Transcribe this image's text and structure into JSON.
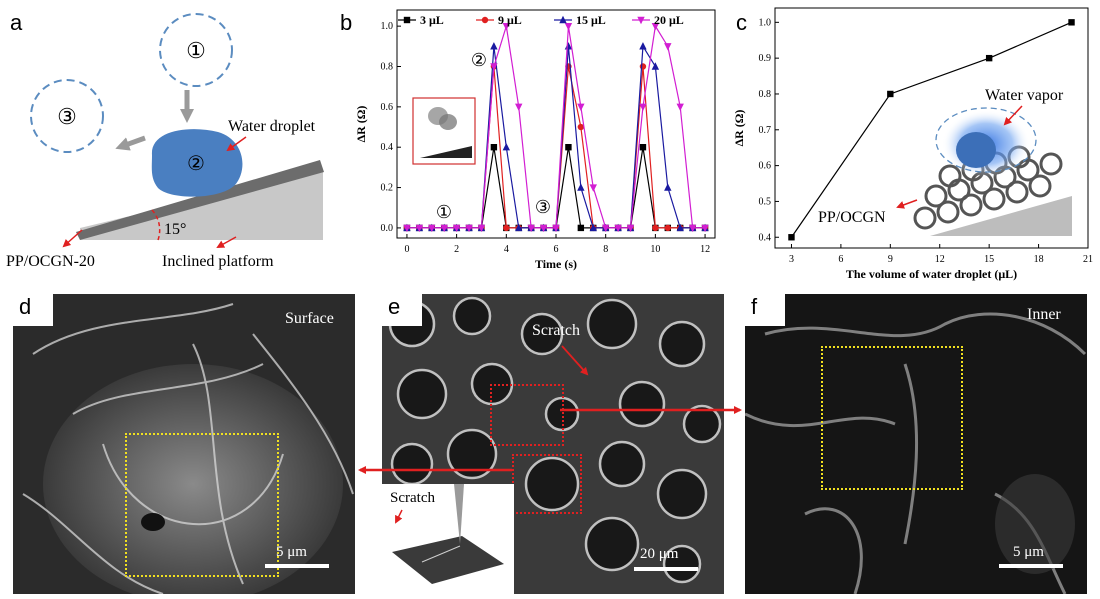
{
  "panels": {
    "a": {
      "label": "a",
      "step1": "①",
      "step2": "②",
      "step3": "③",
      "water_droplet": "Water droplet",
      "angle": "15°",
      "sample": "PP/OCGN-20",
      "platform": "Inclined platform"
    },
    "b": {
      "label": "b",
      "step1": "①",
      "step2": "②",
      "step3": "③"
    },
    "c": {
      "label": "c",
      "water_vapor": "Water vapor",
      "sample": "PP/OCGN"
    },
    "d": {
      "label": "d",
      "tag": "Surface",
      "scale": "5 μm"
    },
    "e": {
      "label": "e",
      "tag": "Scratch",
      "inset_tag": "Scratch",
      "scale": "20 μm"
    },
    "f": {
      "label": "f",
      "tag": "Inner",
      "scale": "5 μm"
    }
  },
  "colors": {
    "droplet": "#4a7fc1",
    "dashed_circle": "#5b8cc0",
    "arrow_red": "#e02020",
    "platform": "#c8c8c8",
    "series_3": "#000000",
    "series_9": "#e02020",
    "series_15": "#1a1aa0",
    "series_20": "#d21ed2",
    "box_yellow": "#f0e020"
  },
  "chart_data": [
    {
      "id": "b",
      "type": "line",
      "title": "",
      "xlabel": "Time (s)",
      "ylabel": "ΔR (Ω)",
      "xlim": [
        -0.4,
        12.4
      ],
      "ylim": [
        -0.05,
        1.08
      ],
      "xticks": [
        "0",
        "2",
        "4",
        "6",
        "8",
        "10",
        "12"
      ],
      "yticks": [
        "0.0",
        "0.2",
        "0.4",
        "0.6",
        "0.8",
        "1.0"
      ],
      "legend_position": "top",
      "series": [
        {
          "name": "3 μL",
          "marker": "square",
          "x": [
            0,
            0.5,
            1,
            1.5,
            2,
            2.5,
            3,
            3.5,
            4,
            4.5,
            5,
            5.5,
            6,
            6.5,
            7,
            7.5,
            8,
            8.5,
            9,
            9.5,
            10,
            10.5,
            11,
            11.5,
            12
          ],
          "y": [
            0,
            0,
            0,
            0,
            0,
            0,
            0,
            0.4,
            0,
            0,
            0,
            0,
            0,
            0.4,
            0,
            0,
            0,
            0,
            0,
            0.4,
            0,
            0,
            0,
            0,
            0
          ]
        },
        {
          "name": "9 μL",
          "marker": "circle",
          "x": [
            0,
            0.5,
            1,
            1.5,
            2,
            2.5,
            3,
            3.5,
            4,
            4.5,
            5,
            5.5,
            6,
            6.5,
            7,
            7.5,
            8,
            8.5,
            9,
            9.5,
            10,
            10.5,
            11,
            11.5,
            12
          ],
          "y": [
            0,
            0,
            0,
            0,
            0,
            0,
            0,
            0.8,
            0,
            0,
            0,
            0,
            0,
            0.8,
            0.5,
            0,
            0,
            0,
            0,
            0.8,
            0,
            0,
            0,
            0,
            0
          ]
        },
        {
          "name": "15 μL",
          "marker": "triangle-up",
          "x": [
            0,
            0.5,
            1,
            1.5,
            2,
            2.5,
            3,
            3.5,
            4,
            4.5,
            5,
            5.5,
            6,
            6.5,
            7,
            7.5,
            8,
            8.5,
            9,
            9.5,
            10,
            10.5,
            11,
            11.5,
            12
          ],
          "y": [
            0,
            0,
            0,
            0,
            0,
            0,
            0,
            0.9,
            0.4,
            0,
            0,
            0,
            0,
            0.9,
            0.2,
            0,
            0,
            0,
            0,
            0.9,
            0.8,
            0.2,
            0,
            0,
            0
          ]
        },
        {
          "name": "20 μL",
          "marker": "triangle-down",
          "x": [
            0,
            0.5,
            1,
            1.5,
            2,
            2.5,
            3,
            3.5,
            4,
            4.5,
            5,
            5.5,
            6,
            6.5,
            7,
            7.5,
            8,
            8.5,
            9,
            9.5,
            10,
            10.5,
            11,
            11.5,
            12
          ],
          "y": [
            0,
            0,
            0,
            0,
            0,
            0,
            0,
            0.8,
            1.0,
            0.6,
            0,
            0,
            0,
            1.0,
            0.6,
            0.2,
            0,
            0,
            0,
            0.6,
            1.0,
            0.9,
            0.6,
            0,
            0
          ]
        }
      ]
    },
    {
      "id": "c",
      "type": "line",
      "title": "",
      "xlabel": "The volume of water droplet (μL)",
      "ylabel": "ΔR (Ω)",
      "xlim": [
        2,
        21
      ],
      "ylim": [
        0.37,
        1.04
      ],
      "xticks": [
        "3",
        "6",
        "9",
        "12",
        "15",
        "18",
        "21"
      ],
      "yticks": [
        "0.4",
        "0.5",
        "0.6",
        "0.7",
        "0.8",
        "0.9",
        "1.0"
      ],
      "series": [
        {
          "name": "ΔR",
          "marker": "square",
          "x": [
            3,
            9,
            15,
            20
          ],
          "y": [
            0.4,
            0.8,
            0.9,
            1.0
          ]
        }
      ]
    }
  ]
}
